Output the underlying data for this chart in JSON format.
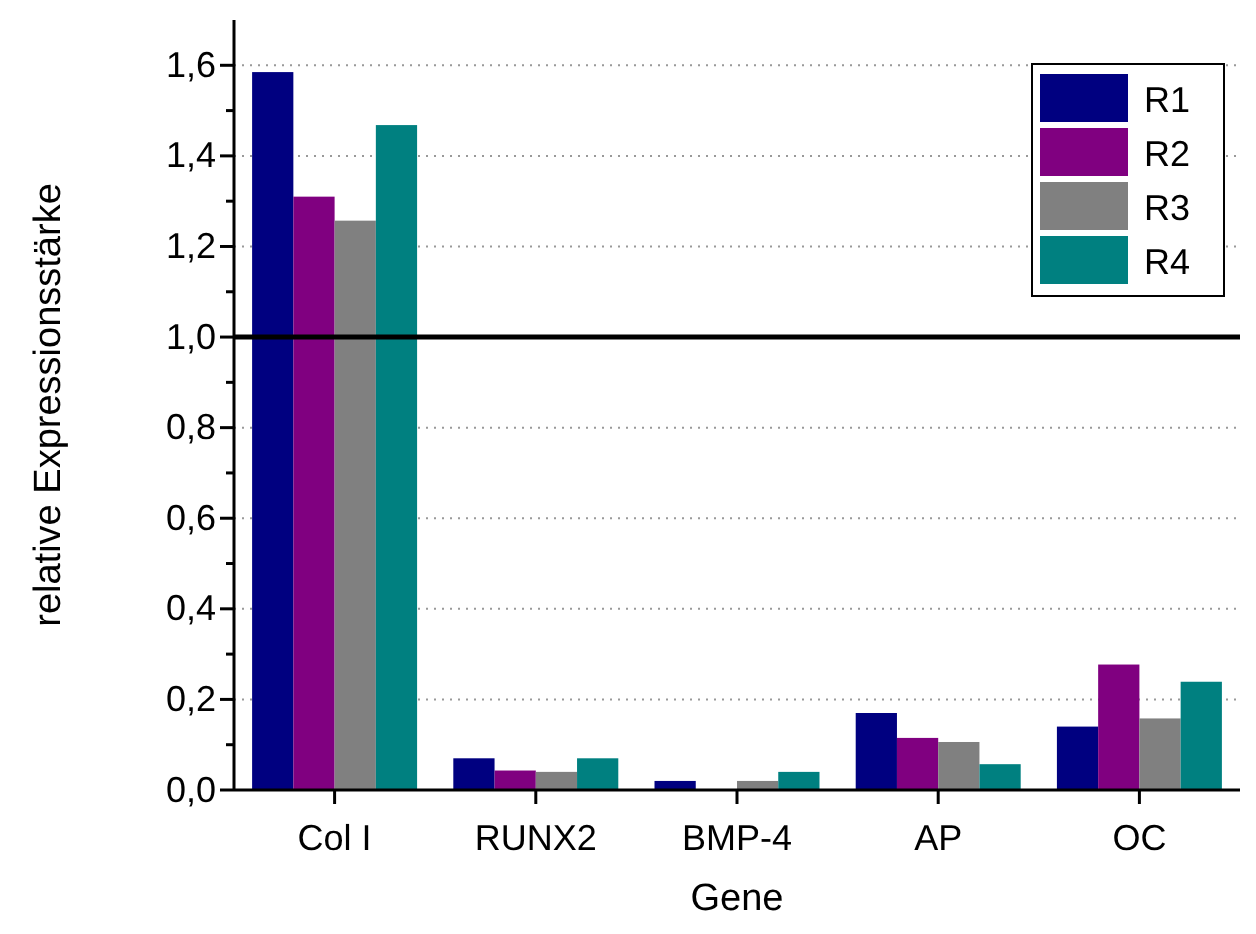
{
  "chart_data": {
    "type": "bar",
    "xlabel": "Gene",
    "ylabel": "relative Expressionsstärke",
    "categories": [
      "Col I",
      "RUNX2",
      "BMP-4",
      "AP",
      "OC"
    ],
    "series": [
      {
        "name": "R1",
        "color": "#000080",
        "values": [
          1.585,
          0.07,
          0.02,
          0.17,
          0.14
        ]
      },
      {
        "name": "R2",
        "color": "#800080",
        "values": [
          1.31,
          0.043,
          0,
          0.115,
          0.277
        ]
      },
      {
        "name": "R3",
        "color": "#808080",
        "values": [
          1.257,
          0.04,
          0.02,
          0.106,
          0.158
        ]
      },
      {
        "name": "R4",
        "color": "#008080",
        "values": [
          1.468,
          0.07,
          0.04,
          0.057,
          0.239
        ]
      }
    ],
    "ylim": [
      0,
      1.7
    ],
    "yticks": [
      {
        "value": 0,
        "label": "0,0"
      },
      {
        "value": 0.1,
        "label": null
      },
      {
        "value": 0.2,
        "label": "0,2"
      },
      {
        "value": 0.3,
        "label": null
      },
      {
        "value": 0.4,
        "label": "0,4"
      },
      {
        "value": 0.5,
        "label": null
      },
      {
        "value": 0.6,
        "label": "0,6"
      },
      {
        "value": 0.7,
        "label": null
      },
      {
        "value": 0.8,
        "label": "0,8"
      },
      {
        "value": 0.9,
        "label": null
      },
      {
        "value": 1.0,
        "label": "1,0"
      },
      {
        "value": 1.1,
        "label": null
      },
      {
        "value": 1.2,
        "label": "1,2"
      },
      {
        "value": 1.3,
        "label": null
      },
      {
        "value": 1.4,
        "label": "1,4"
      },
      {
        "value": 1.5,
        "label": null
      },
      {
        "value": 1.6,
        "label": "1,6"
      }
    ],
    "ref_lines": [
      {
        "axis": "y",
        "value": 1.0,
        "color": "#000000"
      }
    ],
    "grid": "y",
    "legend": "top right"
  }
}
